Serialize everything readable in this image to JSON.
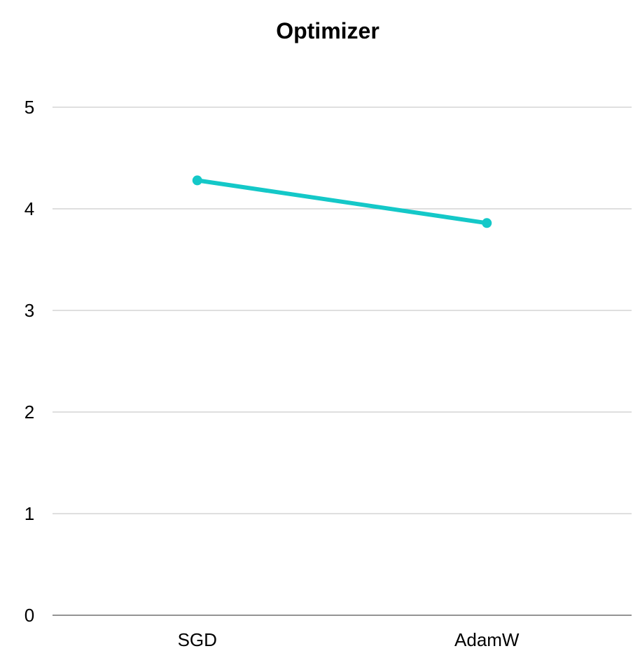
{
  "chart_data": {
    "type": "line",
    "title": "Optimizer",
    "xlabel": "",
    "ylabel": "",
    "categories": [
      "SGD",
      "AdamW"
    ],
    "series": [
      {
        "values": [
          4.28,
          3.86
        ]
      }
    ],
    "ylim": [
      0,
      5
    ],
    "yticks": [
      "0",
      "1",
      "2",
      "3",
      "4",
      "5"
    ],
    "grid": true,
    "legend": "none",
    "colors": {
      "line": "#14c8c8"
    }
  }
}
